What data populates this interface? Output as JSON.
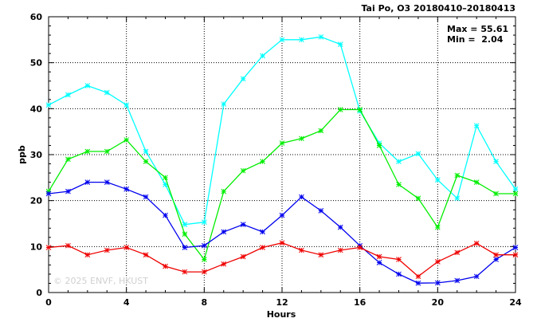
{
  "chart_data": {
    "type": "line",
    "title": "Tai Po, O3 20180410–20180413",
    "xlabel": "Hours",
    "ylabel": "ppb",
    "xlim": [
      0,
      24
    ],
    "ylim": [
      0,
      60
    ],
    "xticks": [
      "0",
      "4",
      "8",
      "12",
      "16",
      "20",
      "24"
    ],
    "yticks": [
      "0",
      "10",
      "20",
      "30",
      "40",
      "50",
      "60"
    ],
    "grid": true,
    "annotations": [
      "Max = 55.61",
      "Min =  2.04"
    ],
    "watermark": "© 2025  ENVF, HKUST",
    "x": [
      0,
      1,
      2,
      3,
      4,
      5,
      6,
      7,
      8,
      9,
      10,
      11,
      12,
      13,
      14,
      15,
      16,
      17,
      18,
      19,
      20,
      21,
      22,
      23,
      24
    ],
    "series": [
      {
        "color": "#00ffff",
        "values": [
          40.8,
          43.0,
          45.0,
          43.5,
          40.8,
          30.7,
          23.5,
          14.8,
          15.3,
          41.0,
          46.5,
          51.5,
          55.0,
          55.0,
          55.61,
          54.0,
          39.5,
          32.5,
          28.5,
          30.2,
          24.5,
          20.5,
          36.3,
          28.5,
          22.5
        ]
      },
      {
        "color": "#00ee00",
        "values": [
          22.0,
          29.0,
          30.7,
          30.7,
          33.2,
          28.5,
          25.0,
          12.7,
          7.2,
          22.0,
          26.5,
          28.5,
          32.5,
          33.5,
          35.2,
          39.8,
          39.8,
          32.0,
          23.5,
          20.5,
          14.2,
          25.5,
          24.0,
          21.5,
          21.5
        ]
      },
      {
        "color": "#0000ee",
        "values": [
          21.5,
          22.0,
          24.0,
          24.0,
          22.5,
          20.8,
          16.8,
          9.8,
          10.2,
          13.2,
          14.8,
          13.2,
          16.8,
          20.8,
          17.8,
          14.2,
          10.2,
          6.5,
          4.0,
          2.04,
          2.1,
          2.6,
          3.5,
          7.2,
          9.8
        ]
      },
      {
        "color": "#ee0000",
        "values": [
          9.8,
          10.2,
          8.2,
          9.2,
          9.8,
          8.2,
          5.7,
          4.5,
          4.5,
          6.2,
          7.8,
          9.8,
          10.8,
          9.2,
          8.2,
          9.2,
          9.8,
          7.8,
          7.2,
          3.5,
          6.7,
          8.7,
          10.7,
          8.2,
          8.2
        ]
      }
    ]
  }
}
